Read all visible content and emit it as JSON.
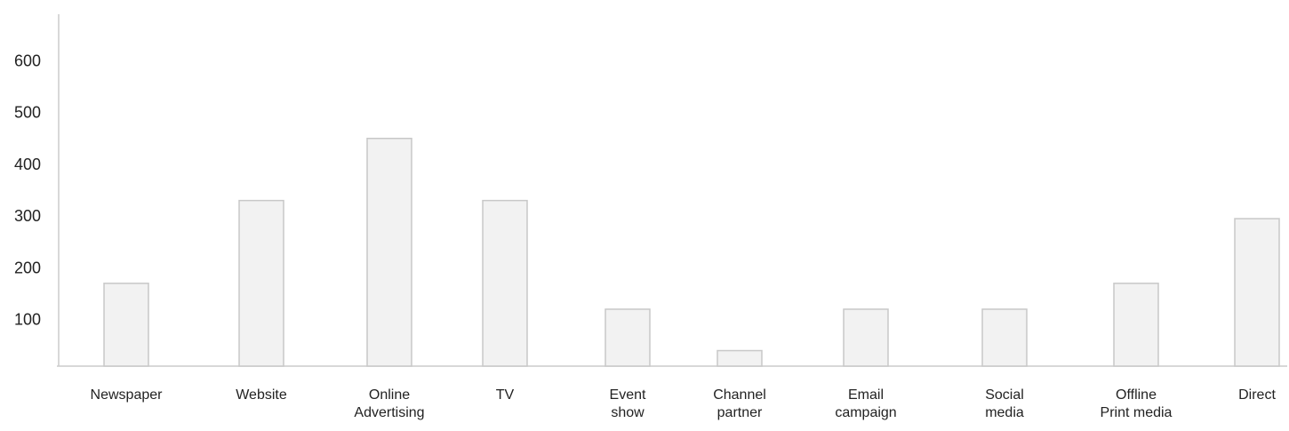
{
  "chart_data": {
    "type": "bar",
    "categories": [
      [
        "Newspaper"
      ],
      [
        "Website"
      ],
      [
        "Online",
        "Advertising"
      ],
      [
        "TV"
      ],
      [
        "Event",
        "show"
      ],
      [
        "Channel",
        "partner"
      ],
      [
        "Email",
        "campaign"
      ],
      [
        "Social",
        "media"
      ],
      [
        "Offline",
        "Print media"
      ],
      [
        "Direct"
      ]
    ],
    "values": [
      170,
      330,
      450,
      330,
      120,
      40,
      120,
      120,
      170,
      295
    ],
    "y_ticks": [
      100,
      200,
      300,
      400,
      500,
      600
    ],
    "ylim": [
      10,
      690
    ],
    "grid": false,
    "legend": "none",
    "colors": {
      "bar_fill": "#f2f2f2",
      "bar_stroke": "#c8c8c8",
      "axis": "#cccccc",
      "text": "#222222"
    }
  }
}
